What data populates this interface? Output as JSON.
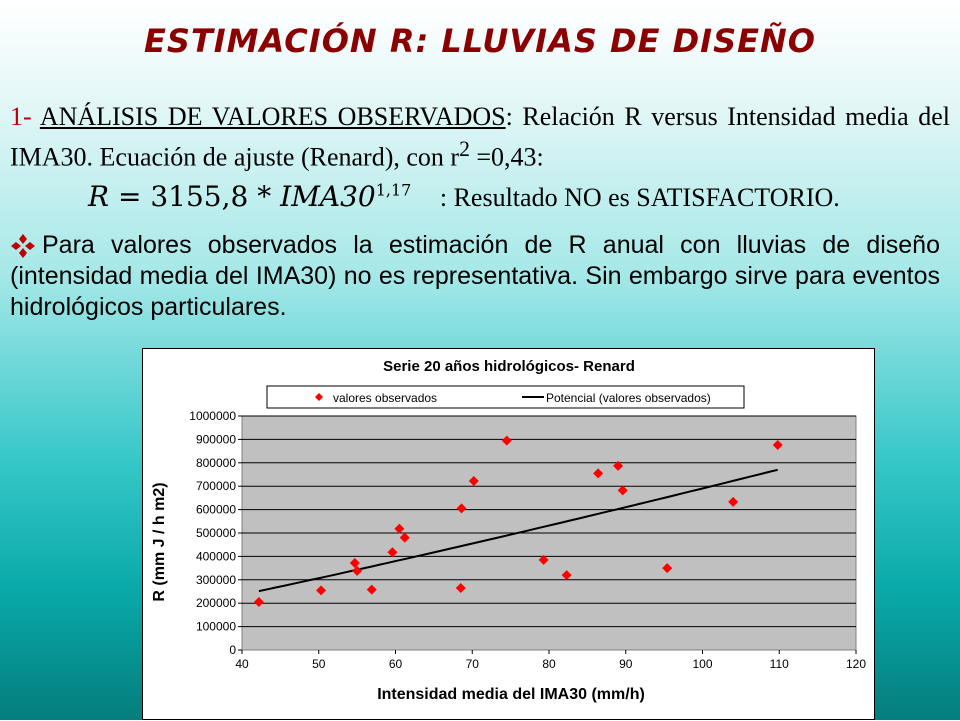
{
  "title": "ESTIMACIÓN R: LLUVIAS DE DISEÑO",
  "section1": {
    "number": "1-",
    "heading": "ANÁLISIS DE VALORES OBSERVADOS",
    "text_a": ": Relación R versus Intensidad media del IMA30. Ecuación de ajuste (Renard), con r",
    "sup": "2",
    "text_b": " =0,43:"
  },
  "equation": {
    "lhs": "R",
    "rhs": "3155,8 *",
    "var": "IMA30",
    "exp": "1,17",
    "result": ":   Resultado NO es SATISFACTORIO."
  },
  "bullet_text": "Para valores observados la estimación de R anual con lluvias de diseño  (intensidad media del IMA30) no es representativa. Sin embargo sirve para eventos hidrológicos particulares.",
  "colors": {
    "title": "#8b0000",
    "marker": "#ff0000",
    "plot_bg": "#c0c0c0",
    "bullet": "#c00000"
  },
  "chart_data": {
    "type": "scatter",
    "title": "Serie 20 años hidrológicos- Renard",
    "xlabel": "Intensidad media del IMA30 (mm/h)",
    "ylabel": "R (mm J / h m2)",
    "xlim": [
      40,
      120
    ],
    "ylim": [
      0,
      1000000
    ],
    "x_ticks": [
      40,
      50,
      60,
      70,
      80,
      90,
      100,
      110,
      120
    ],
    "y_ticks": [
      0,
      100000,
      200000,
      300000,
      400000,
      500000,
      600000,
      700000,
      800000,
      900000,
      1000000
    ],
    "grid": "horizontal",
    "legend_position": "top",
    "series": [
      {
        "name": "valores observados",
        "x": [
          42.2,
          50.3,
          54.7,
          55.0,
          56.9,
          59.6,
          60.5,
          61.2,
          68.5,
          68.6,
          70.2,
          74.5,
          79.3,
          82.3,
          86.4,
          89.0,
          89.6,
          95.4,
          104.0,
          109.8
        ],
        "y": [
          205000,
          255000,
          372000,
          338000,
          258000,
          418000,
          518000,
          480000,
          265000,
          605000,
          722000,
          895000,
          385000,
          320000,
          755000,
          787000,
          682000,
          350000,
          633000,
          876000
        ]
      },
      {
        "name": "Potencial (valores observados)",
        "fit": {
          "a": 3155.8,
          "b": 1.17,
          "x_from": 42.2,
          "x_to": 109.8
        }
      }
    ]
  }
}
